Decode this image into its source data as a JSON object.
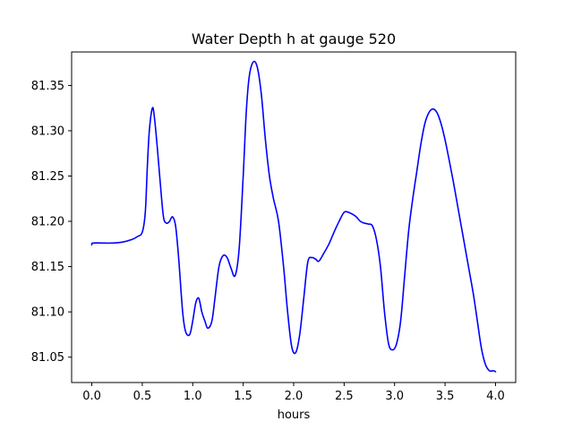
{
  "chart_data": {
    "type": "line",
    "title": "Water Depth h at gauge 520",
    "xlabel": "hours",
    "ylabel": "",
    "xlim": [
      -0.2,
      4.2
    ],
    "ylim": [
      81.022,
      81.387
    ],
    "xticks": [
      0.0,
      0.5,
      1.0,
      1.5,
      2.0,
      2.5,
      3.0,
      3.5,
      4.0
    ],
    "xtick_labels": [
      "0.0",
      "0.5",
      "1.0",
      "1.5",
      "2.0",
      "2.5",
      "3.0",
      "3.5",
      "4.0"
    ],
    "yticks": [
      81.05,
      81.1,
      81.15,
      81.2,
      81.25,
      81.3,
      81.35
    ],
    "ytick_labels": [
      "81.05",
      "81.10",
      "81.15",
      "81.20",
      "81.25",
      "81.30",
      "81.35"
    ],
    "grid": false,
    "series": [
      {
        "color": "#0000ff",
        "x": [
          0.0,
          0.01,
          0.1,
          0.2,
          0.3,
          0.4,
          0.45,
          0.5,
          0.53,
          0.55,
          0.57,
          0.6,
          0.62,
          0.65,
          0.68,
          0.71,
          0.74,
          0.77,
          0.8,
          0.83,
          0.86,
          0.9,
          0.93,
          0.97,
          1.0,
          1.03,
          1.06,
          1.09,
          1.12,
          1.15,
          1.19,
          1.22,
          1.26,
          1.3,
          1.34,
          1.38,
          1.42,
          1.46,
          1.5,
          1.53,
          1.56,
          1.6,
          1.64,
          1.68,
          1.72,
          1.76,
          1.8,
          1.85,
          1.9,
          1.94,
          1.98,
          2.02,
          2.06,
          2.1,
          2.14,
          2.18,
          2.22,
          2.25,
          2.3,
          2.35,
          2.4,
          2.45,
          2.5,
          2.54,
          2.58,
          2.62,
          2.66,
          2.7,
          2.74,
          2.78,
          2.82,
          2.86,
          2.9,
          2.94,
          2.98,
          3.02,
          3.06,
          3.1,
          3.14,
          3.18,
          3.22,
          3.26,
          3.3,
          3.34,
          3.38,
          3.42,
          3.46,
          3.5,
          3.54,
          3.58,
          3.62,
          3.66,
          3.7,
          3.74,
          3.78,
          3.82,
          3.86,
          3.9,
          3.94,
          3.98,
          4.0
        ],
        "y": [
          81.174,
          81.176,
          81.176,
          81.176,
          81.177,
          81.18,
          81.183,
          81.188,
          81.21,
          81.26,
          81.3,
          81.325,
          81.315,
          81.28,
          81.24,
          81.205,
          81.198,
          81.2,
          81.205,
          81.195,
          81.16,
          81.1,
          81.078,
          81.075,
          81.09,
          81.11,
          81.115,
          81.1,
          81.09,
          81.082,
          81.09,
          81.115,
          81.15,
          81.162,
          81.16,
          81.148,
          81.14,
          81.17,
          81.25,
          81.32,
          81.36,
          81.376,
          81.37,
          81.34,
          81.29,
          81.25,
          81.225,
          81.2,
          81.15,
          81.1,
          81.062,
          81.055,
          81.075,
          81.115,
          81.155,
          81.16,
          81.158,
          81.156,
          81.165,
          81.175,
          81.188,
          81.2,
          81.21,
          81.21,
          81.208,
          81.205,
          81.2,
          81.198,
          81.197,
          81.195,
          81.18,
          81.15,
          81.1,
          81.065,
          81.058,
          81.065,
          81.09,
          81.14,
          81.19,
          81.225,
          81.255,
          81.285,
          81.308,
          81.32,
          81.324,
          81.32,
          81.308,
          81.29,
          81.268,
          81.245,
          81.22,
          81.195,
          81.17,
          81.145,
          81.12,
          81.09,
          81.06,
          81.042,
          81.035,
          81.035,
          81.034
        ]
      }
    ]
  }
}
